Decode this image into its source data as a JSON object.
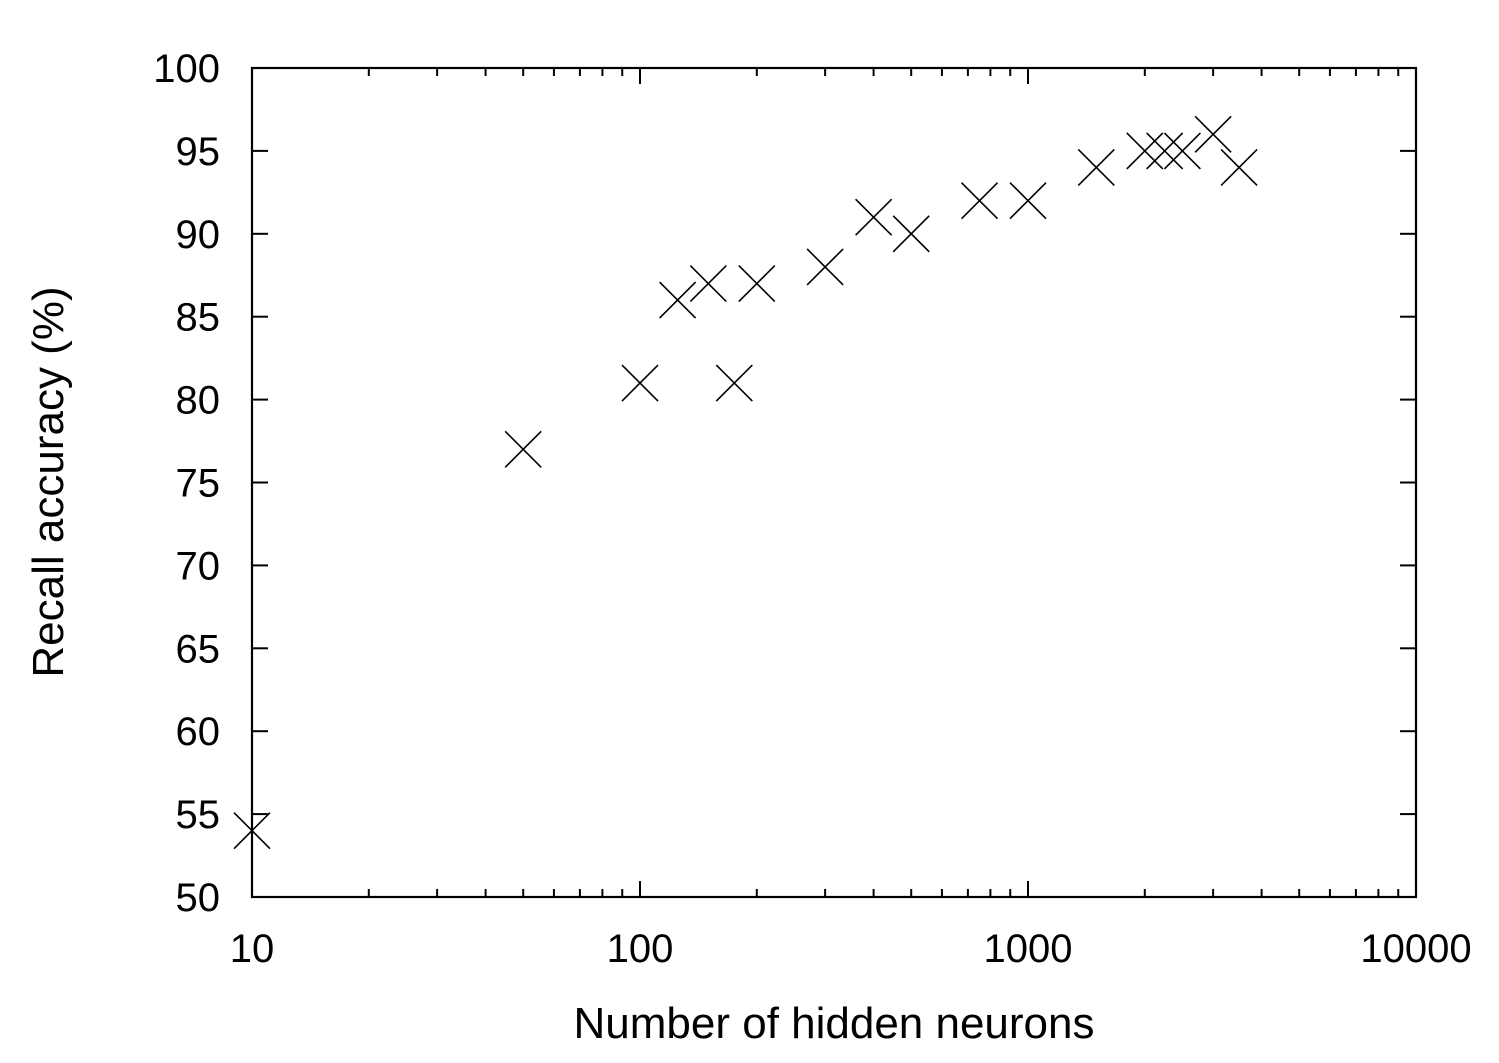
{
  "chart_data": {
    "type": "scatter",
    "title": "",
    "xlabel": "Number of hidden neurons",
    "ylabel": "Recall accuracy (%)",
    "x_scale": "log",
    "xlim": [
      10,
      10000
    ],
    "ylim": [
      50,
      100
    ],
    "x_ticks": [
      10,
      100,
      1000,
      10000
    ],
    "x_tick_labels": [
      "10",
      "100",
      "1000",
      "10000"
    ],
    "y_ticks": [
      50,
      55,
      60,
      65,
      70,
      75,
      80,
      85,
      90,
      95,
      100
    ],
    "y_tick_labels": [
      "50",
      "55",
      "60",
      "65",
      "70",
      "75",
      "80",
      "85",
      "90",
      "95",
      "100"
    ],
    "grid": false,
    "marker": "x",
    "colors": {
      "marker": "#000000",
      "axis": "#000000"
    },
    "series": [
      {
        "x": [
          10,
          50,
          100,
          125,
          150,
          175,
          200,
          300,
          400,
          500,
          750,
          1000,
          1500,
          2000,
          2250,
          2500,
          3000,
          3500
        ],
        "y": [
          54,
          77,
          81,
          86,
          87,
          81,
          87,
          88,
          91,
          90,
          92,
          92,
          94,
          95,
          95,
          95,
          96,
          94
        ]
      }
    ]
  }
}
